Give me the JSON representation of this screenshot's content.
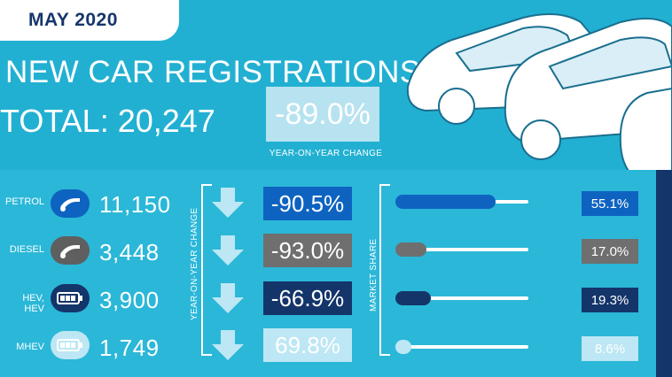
{
  "header": {
    "month": "MAY 2020",
    "headline": "NEW CAR REGISTRATIONS",
    "total": "TOTAL: 20,247",
    "yoy_change": "-89.0%",
    "yoy_caption": "YEAR-ON-YEAR CHANGE"
  },
  "axis_captions": {
    "yoy": "YEAR-ON-YEAR CHANGE",
    "share": "MARKET SHARE"
  },
  "rows": [
    {
      "label": "PETROL",
      "count": "11,150",
      "change": "-90.5%",
      "share": "55.1%",
      "share_value": 55.1,
      "icon": "fuel-pump-icon",
      "color": "#0e63c0"
    },
    {
      "label": "DIESEL",
      "count": "3,448",
      "change": "-93.0%",
      "share": "17.0%",
      "share_value": 17.0,
      "icon": "fuel-pump-icon",
      "color": "#6f6f6f"
    },
    {
      "label": "HEV, HEV",
      "count": "3,900",
      "change": "-66.9%",
      "share": "19.3%",
      "share_value": 19.3,
      "icon": "battery-icon",
      "color": "#14356a"
    },
    {
      "label": "MHEV",
      "count": "1,749",
      "change": "69.8%",
      "share": "8.6%",
      "share_value": 8.6,
      "icon": "battery-icon",
      "color": "#bde7f4"
    }
  ],
  "colors": {
    "background": "#22b0d2",
    "navy": "#16356b",
    "white": "#ffffff"
  }
}
